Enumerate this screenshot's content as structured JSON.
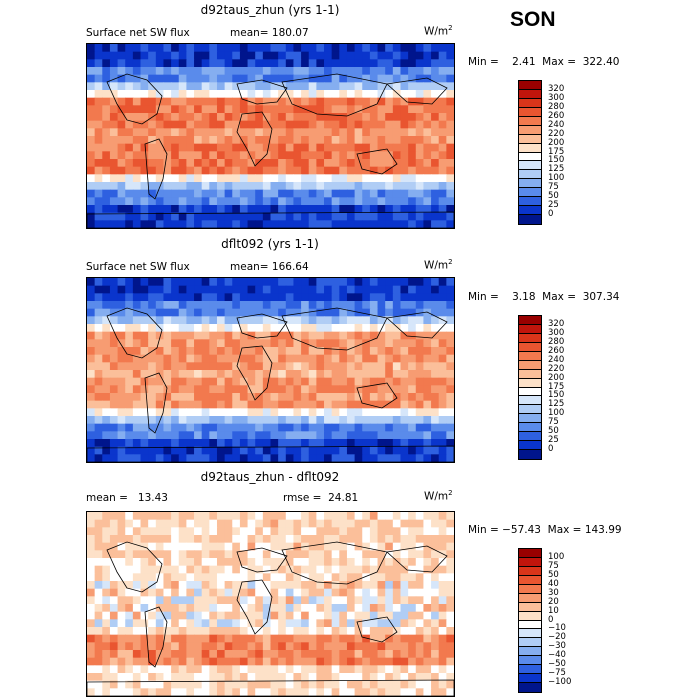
{
  "season": "SON",
  "panels": [
    {
      "title": "d92taus_zhun (yrs 1-1)",
      "left_label": "Surface net SW flux",
      "stat_label": "mean=",
      "stat_value": "180.07",
      "units_base": "W/m",
      "units_exp": "2",
      "minmax": "Min =    2.41  Max =  322.40",
      "colorbar": {
        "labels": [
          "320",
          "300",
          "280",
          "260",
          "240",
          "220",
          "200",
          "175",
          "150",
          "125",
          "100",
          "75",
          "50",
          "25",
          "0"
        ],
        "colors": [
          "#990000",
          "#c0150c",
          "#d9351a",
          "#e95530",
          "#f2794e",
          "#f79c72",
          "#fbbf9a",
          "#fde1c8",
          "#ffffff",
          "#d6e6fa",
          "#b0cdf5",
          "#85aef0",
          "#5a8beb",
          "#2e60e0",
          "#0a35cc",
          "#00158c"
        ]
      },
      "map_type": "sw"
    },
    {
      "title": "dflt092 (yrs 1-1)",
      "left_label": "Surface net SW flux",
      "stat_label": "mean=",
      "stat_value": "166.64",
      "units_base": "W/m",
      "units_exp": "2",
      "minmax": "Min =    3.18  Max =  307.34",
      "colorbar": {
        "labels": [
          "320",
          "300",
          "280",
          "260",
          "240",
          "220",
          "200",
          "175",
          "150",
          "125",
          "100",
          "75",
          "50",
          "25",
          "0"
        ],
        "colors": [
          "#990000",
          "#c0150c",
          "#d9351a",
          "#e95530",
          "#f2794e",
          "#f79c72",
          "#fbbf9a",
          "#fde1c8",
          "#ffffff",
          "#d6e6fa",
          "#b0cdf5",
          "#85aef0",
          "#5a8beb",
          "#2e60e0",
          "#0a35cc",
          "#00158c"
        ]
      },
      "map_type": "sw2"
    },
    {
      "title": "d92taus_zhun - dflt092",
      "left_label": "mean =   13.43",
      "stat_label": "rmse =",
      "stat_value": "24.81",
      "units_base": "W/m",
      "units_exp": "2",
      "minmax": "Min = −57.43  Max = 143.99",
      "colorbar": {
        "labels": [
          "100",
          "75",
          "50",
          "40",
          "30",
          "20",
          "10",
          "0",
          "−10",
          "−20",
          "−30",
          "−40",
          "−50",
          "−75",
          "−100"
        ],
        "colors": [
          "#990000",
          "#c0150c",
          "#d9351a",
          "#e95530",
          "#f2794e",
          "#f79c72",
          "#fbbf9a",
          "#fde1c8",
          "#ffffff",
          "#d6e6fa",
          "#b0cdf5",
          "#85aef0",
          "#5a8beb",
          "#2e60e0",
          "#0a35cc",
          "#00158c"
        ]
      },
      "map_type": "diff"
    }
  ]
}
